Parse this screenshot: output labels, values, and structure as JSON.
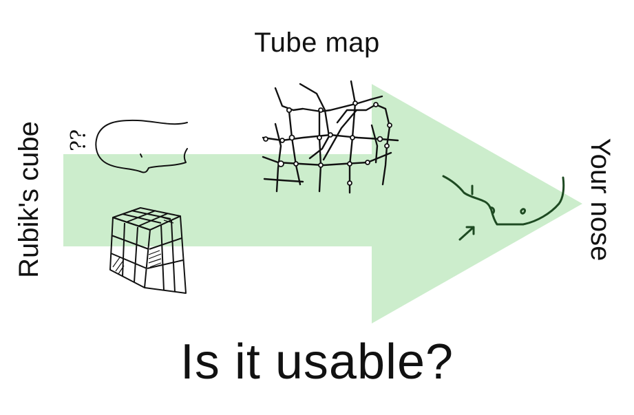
{
  "labels": {
    "top": "Tube map",
    "left": "Rubik's cube",
    "right": "Your nose",
    "bottom": "Is it usable?"
  },
  "colors": {
    "arrow_fill": "#c9ecc9",
    "ink": "#111111",
    "nose_ink": "#1e4a22"
  },
  "sketches": {
    "head_question": "??"
  }
}
